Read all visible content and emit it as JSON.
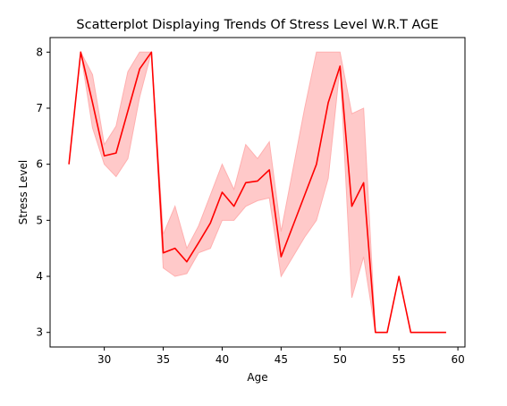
{
  "chart_data": {
    "type": "line",
    "title": "Scatterplot Displaying Trends Of Stress Level W.R.T AGE",
    "xlabel": "Age",
    "ylabel": "Stress Level",
    "xlim": [
      25.4,
      60.6
    ],
    "ylim": [
      2.74,
      8.26
    ],
    "xticks": [
      30,
      35,
      40,
      45,
      50,
      55,
      60
    ],
    "yticks": [
      3,
      4,
      5,
      6,
      7,
      8
    ],
    "grid": false,
    "colors": {
      "line": "#ff0000",
      "band": "#ffc0c0",
      "band_edge": "#ffb0b0",
      "axes": "#000000"
    },
    "series": [
      {
        "x": [
          27,
          28,
          29,
          30,
          31,
          32,
          33,
          34,
          35,
          36,
          37,
          38,
          39,
          40,
          41,
          42,
          43,
          44,
          45,
          46,
          47,
          48,
          49,
          50,
          51,
          52,
          53,
          54,
          55,
          56,
          57,
          58,
          59
        ],
        "y": [
          6.0,
          8.0,
          7.1,
          6.15,
          6.2,
          6.95,
          7.7,
          8.0,
          4.42,
          4.5,
          4.26,
          4.6,
          4.95,
          5.5,
          5.25,
          5.67,
          5.7,
          5.9,
          4.35,
          4.9,
          5.45,
          6.0,
          7.1,
          7.75,
          5.25,
          5.67,
          3.0,
          3.0,
          4.0,
          3.0,
          3.0,
          3.0,
          3.0
        ],
        "lower": [
          6.0,
          8.0,
          6.65,
          6.0,
          5.78,
          6.1,
          7.2,
          8.0,
          4.15,
          4.0,
          4.05,
          4.42,
          4.5,
          5.0,
          5.0,
          5.25,
          5.35,
          5.4,
          4.0,
          4.35,
          4.7,
          5.0,
          5.75,
          7.75,
          3.62,
          4.35,
          3.0,
          3.0,
          4.0,
          3.0,
          3.0,
          3.0,
          3.0
        ],
        "upper": [
          6.0,
          8.0,
          7.6,
          6.35,
          6.68,
          7.65,
          8.0,
          8.0,
          4.75,
          5.25,
          4.5,
          4.9,
          5.45,
          6.0,
          5.55,
          6.35,
          6.1,
          6.4,
          4.8,
          5.9,
          7.0,
          8.0,
          8.0,
          8.0,
          6.9,
          7.0,
          3.0,
          3.0,
          4.0,
          3.0,
          3.0,
          3.0,
          3.0
        ]
      }
    ]
  }
}
